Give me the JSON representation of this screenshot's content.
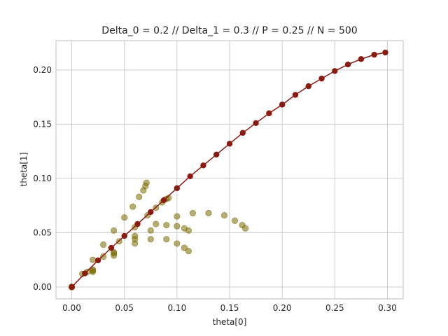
{
  "chart_data": {
    "type": "scatter",
    "title": "Delta_0 = 0.2 // Delta_1 = 0.3 // P = 0.25 // N = 500",
    "xlabel": "theta[0]",
    "ylabel": "theta[1]",
    "xlim": [
      -0.015,
      0.315
    ],
    "ylim": [
      -0.011,
      0.227
    ],
    "xticks": [
      0.0,
      0.05,
      0.1,
      0.15,
      0.2,
      0.25,
      0.3
    ],
    "xtick_labels": [
      "0.00",
      "0.05",
      "0.10",
      "0.15",
      "0.20",
      "0.25",
      "0.30"
    ],
    "yticks": [
      0.0,
      0.05,
      0.1,
      0.15,
      0.2
    ],
    "ytick_labels": [
      "0.00",
      "0.05",
      "0.10",
      "0.15",
      "0.20"
    ],
    "grid": true,
    "colors": {
      "main": "#8b1a10",
      "olive": "#7a6a00",
      "grid": "#cccccc",
      "frame": "#bfbfbf"
    },
    "series": [
      {
        "style": "line-marker",
        "color": "#8b1a10",
        "x": [
          0.0,
          0.0125,
          0.025,
          0.0375,
          0.05,
          0.0625,
          0.075,
          0.0875,
          0.1,
          0.1125,
          0.125,
          0.1375,
          0.15,
          0.1625,
          0.175,
          0.1875,
          0.2,
          0.2125,
          0.225,
          0.2375,
          0.25,
          0.2625,
          0.275,
          0.2875,
          0.298
        ],
        "y": [
          0.0,
          0.0125,
          0.0245,
          0.036,
          0.047,
          0.058,
          0.069,
          0.08,
          0.091,
          0.102,
          0.112,
          0.122,
          0.132,
          0.142,
          0.151,
          0.16,
          0.168,
          0.177,
          0.185,
          0.192,
          0.199,
          0.205,
          0.21,
          0.214,
          0.216
        ]
      },
      {
        "style": "markers",
        "color": "#7a6a00",
        "x": [
          0.0,
          0.01,
          0.02,
          0.03,
          0.04,
          0.05,
          0.058,
          0.064,
          0.068,
          0.07,
          0.071
        ],
        "y": [
          0.0,
          0.012,
          0.025,
          0.039,
          0.052,
          0.064,
          0.074,
          0.083,
          0.089,
          0.093,
          0.096
        ]
      },
      {
        "style": "markers",
        "color": "#7a6a00",
        "x": [
          0.0,
          0.015,
          0.03,
          0.045,
          0.06,
          0.072,
          0.08,
          0.086,
          0.09,
          0.092
        ],
        "y": [
          0.0,
          0.014,
          0.028,
          0.042,
          0.055,
          0.066,
          0.073,
          0.078,
          0.081,
          0.082
        ]
      },
      {
        "style": "markers",
        "color": "#7a6a00",
        "x": [
          0.0,
          0.02,
          0.04,
          0.06,
          0.08,
          0.1,
          0.115,
          0.13,
          0.145,
          0.155,
          0.162,
          0.165
        ],
        "y": [
          0.0,
          0.015,
          0.032,
          0.047,
          0.058,
          0.065,
          0.068,
          0.068,
          0.066,
          0.061,
          0.057,
          0.054
        ]
      },
      {
        "style": "markers",
        "color": "#7a6a00",
        "x": [
          0.0,
          0.02,
          0.04,
          0.06,
          0.075,
          0.09,
          0.1,
          0.107,
          0.111
        ],
        "y": [
          0.0,
          0.016,
          0.031,
          0.044,
          0.052,
          0.057,
          0.056,
          0.054,
          0.052
        ]
      },
      {
        "style": "markers",
        "color": "#7a6a00",
        "x": [
          0.0,
          0.02,
          0.04,
          0.06,
          0.075,
          0.09,
          0.1,
          0.107,
          0.111
        ],
        "y": [
          0.0,
          0.014,
          0.029,
          0.04,
          0.044,
          0.044,
          0.04,
          0.036,
          0.033
        ]
      }
    ]
  }
}
